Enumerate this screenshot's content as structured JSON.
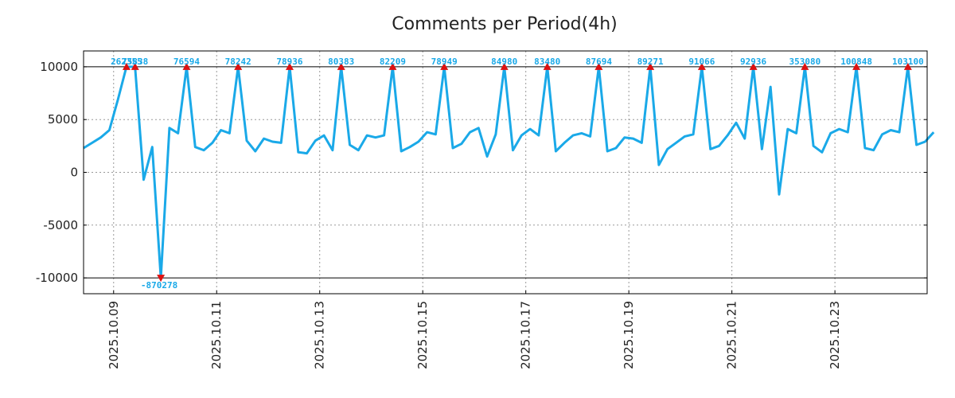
{
  "chart_data": {
    "type": "line",
    "title": "Comments per Period(4h)",
    "xlabel": "",
    "ylabel": "",
    "ylim": [
      -11500,
      11500
    ],
    "yticks": [
      -10000,
      -5000,
      0,
      5000,
      10000
    ],
    "clip_lines": [
      10000,
      -10000
    ],
    "x_start": "2025.10.08 10:00",
    "interval_hours": 4,
    "xticks": [
      "2025.10.09",
      "2025.10.11",
      "2025.10.13",
      "2025.10.15",
      "2025.10.17",
      "2025.10.19",
      "2025.10.21",
      "2025.10.23"
    ],
    "grid": true,
    "colors": {
      "line": "#1aa9e8",
      "marker": "#dd1111",
      "label": "#1aa9e8",
      "axis": "#000000"
    },
    "series": [
      {
        "name": "Comments",
        "values": [
          2300,
          2800,
          3300,
          4000,
          6900,
          10000,
          10000,
          -700,
          2400,
          -10000,
          4200,
          3700,
          10000,
          2400,
          2100,
          2800,
          4000,
          3700,
          10000,
          3000,
          2000,
          3200,
          2900,
          2800,
          10000,
          1900,
          1800,
          3000,
          3500,
          2100,
          10000,
          2600,
          2100,
          3500,
          3300,
          3500,
          10000,
          2000,
          2400,
          2900,
          3800,
          3600,
          10000,
          2300,
          2700,
          3800,
          4200,
          1500,
          3600,
          10000,
          2100,
          3500,
          4100,
          3500,
          10000,
          2000,
          2800,
          3500,
          3700,
          3400,
          10000,
          2000,
          2300,
          3300,
          3200,
          2800,
          10000,
          700,
          2200,
          2800,
          3400,
          3600,
          10000,
          2200,
          2500,
          3500,
          4700,
          3200,
          10000,
          2200,
          8100,
          -2100,
          4100,
          3700,
          10000,
          2500,
          1900,
          3700,
          4100,
          3800,
          10000,
          2300,
          2100,
          3600,
          4000,
          3800,
          10000,
          2600,
          2900,
          3800
        ]
      }
    ],
    "peaks": [
      {
        "index": 5,
        "label": "262355",
        "dir": "up"
      },
      {
        "index": 6,
        "label": "75838",
        "dir": "up"
      },
      {
        "index": 9,
        "label": "-870278",
        "dir": "down"
      },
      {
        "index": 12,
        "label": "76594",
        "dir": "up"
      },
      {
        "index": 18,
        "label": "78242",
        "dir": "up"
      },
      {
        "index": 24,
        "label": "78936",
        "dir": "up"
      },
      {
        "index": 30,
        "label": "80383",
        "dir": "up"
      },
      {
        "index": 36,
        "label": "82209",
        "dir": "up"
      },
      {
        "index": 42,
        "label": "78949",
        "dir": "up"
      },
      {
        "index": 49,
        "label": "84980",
        "dir": "up"
      },
      {
        "index": 54,
        "label": "83480",
        "dir": "up"
      },
      {
        "index": 60,
        "label": "87694",
        "dir": "up"
      },
      {
        "index": 66,
        "label": "89271",
        "dir": "up"
      },
      {
        "index": 72,
        "label": "91066",
        "dir": "up"
      },
      {
        "index": 78,
        "label": "92936",
        "dir": "up"
      },
      {
        "index": 84,
        "label": "353080",
        "dir": "up"
      },
      {
        "index": 90,
        "label": "100848",
        "dir": "up"
      },
      {
        "index": 96,
        "label": "103100",
        "dir": "up"
      }
    ]
  }
}
